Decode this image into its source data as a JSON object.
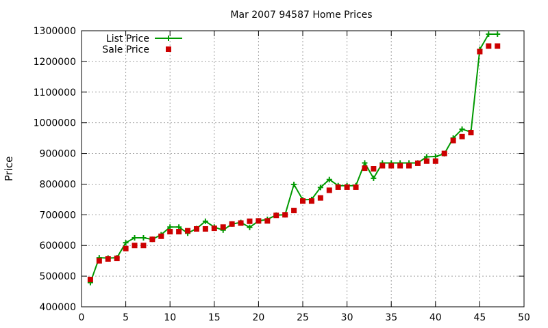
{
  "chart_data": {
    "type": "line",
    "title": "Mar 2007 94587 Home Prices",
    "xlabel": "",
    "ylabel": "Price",
    "xlim": [
      0,
      50
    ],
    "ylim": [
      400000,
      1300000
    ],
    "x_ticks": [
      0,
      5,
      10,
      15,
      20,
      25,
      30,
      35,
      40,
      45,
      50
    ],
    "y_ticks": [
      400000,
      500000,
      600000,
      700000,
      800000,
      900000,
      1000000,
      1100000,
      1200000,
      1300000
    ],
    "grid": true,
    "legend_position": "top-left",
    "series": [
      {
        "name": "List Price",
        "style": "line+cross",
        "color": "#009900",
        "x": [
          1,
          2,
          3,
          4,
          5,
          6,
          7,
          8,
          9,
          10,
          11,
          12,
          13,
          14,
          15,
          16,
          17,
          18,
          19,
          20,
          21,
          22,
          23,
          24,
          25,
          26,
          27,
          28,
          29,
          30,
          31,
          32,
          33,
          34,
          35,
          36,
          37,
          38,
          39,
          40,
          41,
          42,
          43,
          44,
          45,
          46,
          47
        ],
        "values": [
          479000,
          560000,
          559000,
          560000,
          609000,
          625000,
          625000,
          620000,
          635000,
          660000,
          660000,
          640000,
          655000,
          679000,
          660000,
          650000,
          670000,
          675000,
          659000,
          680000,
          685000,
          699000,
          700000,
          799000,
          749000,
          750000,
          789000,
          815000,
          795000,
          795000,
          795000,
          869000,
          819000,
          869000,
          869000,
          869000,
          869000,
          869000,
          889000,
          890000,
          899000,
          950000,
          979000,
          970000,
          1239000,
          1289000,
          1289000
        ]
      },
      {
        "name": "Sale Price",
        "style": "points",
        "color": "#cc0000",
        "x": [
          1,
          2,
          3,
          4,
          5,
          6,
          7,
          8,
          9,
          10,
          11,
          12,
          13,
          14,
          15,
          16,
          17,
          18,
          19,
          20,
          21,
          22,
          23,
          24,
          25,
          26,
          27,
          28,
          29,
          30,
          31,
          32,
          33,
          34,
          35,
          36,
          37,
          38,
          39,
          40,
          41,
          42,
          43,
          44,
          45,
          46,
          47
        ],
        "values": [
          489000,
          550000,
          556000,
          558000,
          590000,
          600000,
          600000,
          620000,
          630000,
          645000,
          645000,
          648000,
          654000,
          654000,
          656000,
          660000,
          670000,
          673000,
          679000,
          680000,
          680000,
          698000,
          700000,
          714000,
          745000,
          745000,
          755000,
          780000,
          790000,
          790000,
          790000,
          852000,
          850000,
          860000,
          860000,
          860000,
          860000,
          868000,
          875000,
          875000,
          900000,
          942000,
          955000,
          968000,
          1232000,
          1250000,
          1250000
        ]
      }
    ]
  }
}
